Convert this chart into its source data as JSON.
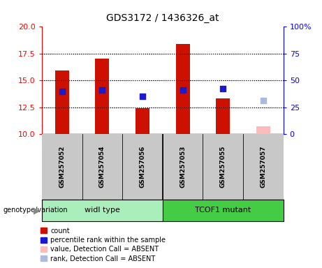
{
  "title": "GDS3172 / 1436326_at",
  "samples": [
    "GSM257052",
    "GSM257054",
    "GSM257056",
    "GSM257053",
    "GSM257055",
    "GSM257057"
  ],
  "groups": [
    "widl type",
    "TCOF1 mutant"
  ],
  "ylim_left": [
    10,
    20
  ],
  "ylim_right": [
    0,
    100
  ],
  "yticks_left": [
    10,
    12.5,
    15,
    17.5,
    20
  ],
  "yticks_right": [
    0,
    25,
    50,
    75,
    100
  ],
  "ytick_labels_right": [
    "0",
    "25",
    "50",
    "75",
    "100%"
  ],
  "bar_bottom": 10,
  "bars_values": [
    15.9,
    17.0,
    12.4,
    18.4,
    13.3,
    10.7
  ],
  "bars_colors": [
    "#cc1100",
    "#cc1100",
    "#cc1100",
    "#cc1100",
    "#cc1100",
    "#ffbbbb"
  ],
  "blue_values": [
    14.0,
    14.1,
    13.5,
    14.1,
    14.2,
    13.1
  ],
  "blue_colors": [
    "#1a1acc",
    "#1a1acc",
    "#1a1acc",
    "#1a1acc",
    "#1a1acc",
    "#aabbdd"
  ],
  "bar_width": 0.35,
  "dot_size": 40,
  "grid_yticks": [
    12.5,
    15,
    17.5
  ],
  "sample_bg": "#c8c8c8",
  "group_bg_wild": "#aaeebb",
  "group_bg_mutant": "#44cc44",
  "legend_items": [
    {
      "label": "count",
      "color": "#cc1100"
    },
    {
      "label": "percentile rank within the sample",
      "color": "#1a1acc"
    },
    {
      "label": "value, Detection Call = ABSENT",
      "color": "#ffbbbb"
    },
    {
      "label": "rank, Detection Call = ABSENT",
      "color": "#aabbdd"
    }
  ],
  "title_fontsize": 10,
  "tick_fontsize": 8,
  "legend_fontsize": 7,
  "sample_fontsize": 6.5
}
